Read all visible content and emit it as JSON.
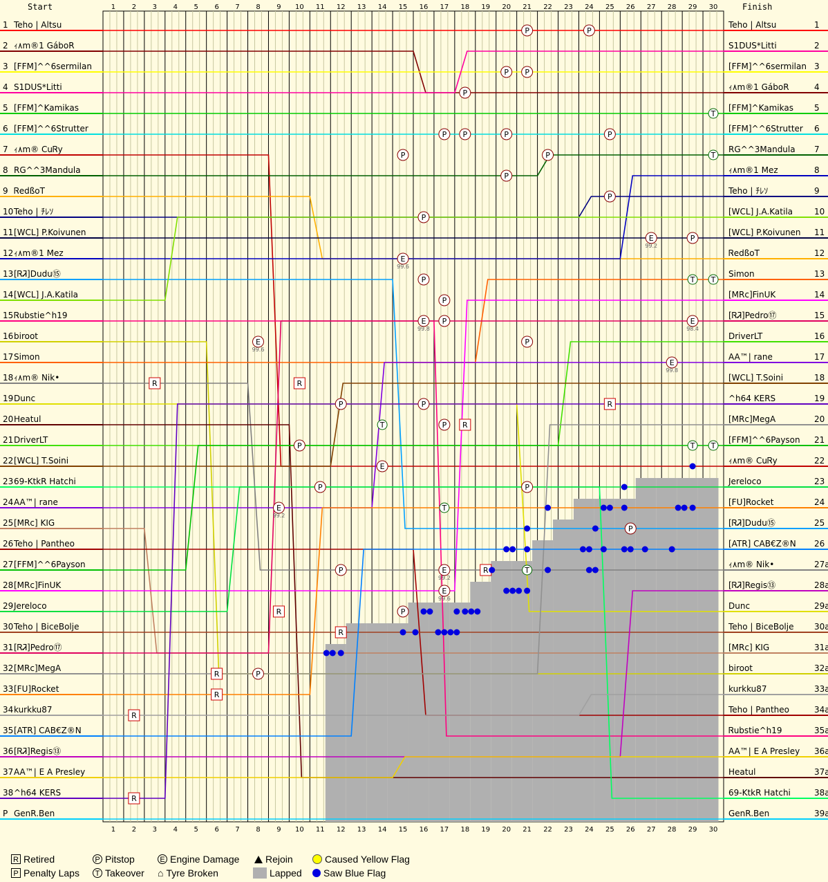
{
  "chart_data": {
    "type": "line",
    "header": {
      "start": "Start",
      "finish": "Finish"
    },
    "laps": [
      1,
      2,
      3,
      4,
      5,
      6,
      7,
      8,
      9,
      10,
      11,
      12,
      13,
      14,
      15,
      16,
      17,
      18,
      19,
      20,
      21,
      22,
      23,
      24,
      25,
      26,
      27,
      28,
      29,
      30
    ],
    "start_positions": [
      "1",
      "2",
      "3",
      "4",
      "5",
      "6",
      "7",
      "8",
      "9",
      "10",
      "11",
      "12",
      "13",
      "14",
      "15",
      "16",
      "17",
      "18",
      "19",
      "20",
      "21",
      "22",
      "23",
      "24",
      "25",
      "26",
      "27",
      "28",
      "29",
      "30",
      "31",
      "32",
      "33",
      "34",
      "35",
      "36",
      "37",
      "38",
      "P"
    ],
    "finish_positions": [
      "1",
      "2",
      "3",
      "4",
      "5",
      "6",
      "7",
      "8",
      "9",
      "10",
      "11",
      "12",
      "13",
      "14",
      "15",
      "16",
      "17",
      "18",
      "19",
      "20",
      "21",
      "22",
      "23",
      "24",
      "25",
      "26",
      "27a",
      "28a",
      "29a",
      "30a",
      "31a",
      "32a",
      "33a",
      "34a",
      "35a",
      "36a",
      "37a",
      "38a",
      "39a"
    ],
    "start_names": [
      "Teho | Altsu",
      "ｨ۸m®1 GáboR",
      "[FFM]^^6sermilan",
      "S1DUS*Litti",
      "[FFM]^Kamikas",
      "[FFM]^^6Strutter",
      "ｨ۸m® CuᏒy",
      "RG^^3Mandula",
      "ᏒedßoT",
      "Teho | ﾁﾚｿ",
      "[WCL] P.Koivunen",
      "ｨ۸m®1 Mez",
      "[ᏒᏘ]Dudu⑮",
      "[WCL] J.A.Katila",
      "Ꮢubstie^h19",
      "biroot",
      "Simon",
      "ｨ۸m® Nik•",
      "Dunc",
      "Heatul",
      "DriverLT",
      "[WCL] T.Soini",
      "69-KtkR Hatchi",
      "AA™| rane",
      "[MRc] KIG",
      "Teho | Pantheo",
      "[FFM]^^6Payson",
      "[MRc]FinUK",
      "Jereloco",
      "Teho | BiceBolje",
      "[ᏒᏘ]Pedro⑰",
      "[MRc]MegA",
      "[FU]Rocket",
      "kurkku87",
      "[ATR] CAB€Z®N",
      "[ᏒᏘ]Regis⑬",
      "AA™| E A Presley",
      "^h64 KERS",
      "GenR.Ben"
    ],
    "finish_names": [
      "Teho | Altsu",
      "S1DUS*Litti",
      "[FFM]^^6sermilan",
      "ｨ۸m®1 GáboR",
      "[FFM]^Kamikas",
      "[FFM]^^6Strutter",
      "RG^^3Mandula",
      "ｨ۸m®1 Mez",
      "Teho | ﾁﾚｿ",
      "[WCL] J.A.Katila",
      "[WCL] P.Koivunen",
      "ᏒedßoT",
      "Simon",
      "[MRc]FinUK",
      "[ᏒᏘ]Pedro⑰",
      "DriverLT",
      "AA™| rane",
      "[WCL] T.Soini",
      "^h64 KERS",
      "[MRc]MegA",
      "[FFM]^^6Payson",
      "ｨ۸m® CuᏒy",
      "Jereloco",
      "[FU]Rocket",
      "[ᏒᏘ]Dudu⑮",
      "[ATR] CAB€Z®N",
      "ｨ۸m® Nik•",
      "[ᏒᏘ]Regis⑬",
      "Dunc",
      "Teho | BiceBolje",
      "[MRc] KIG",
      "biroot",
      "kurkku87",
      "Teho | Pantheo",
      "Ꮢubstie^h19",
      "AA™| E A Presley",
      "Heatul",
      "69-KtkR Hatchi",
      "GenR.Ben"
    ],
    "series": [
      {
        "name": "Teho | Altsu",
        "color": "#ff0000",
        "start": 1,
        "finish": 1
      },
      {
        "name": "ｨ۸m®1 GáboR",
        "color": "#800000",
        "start": 2,
        "finish": 4
      },
      {
        "name": "[FFM]^^6sermilan",
        "color": "#ffff00",
        "start": 3,
        "finish": 3
      },
      {
        "name": "S1DUS*Litti",
        "color": "#ff00a0",
        "start": 4,
        "finish": 2
      },
      {
        "name": "[FFM]^Kamikas",
        "color": "#00cc00",
        "start": 5,
        "finish": 5
      },
      {
        "name": "[FFM]^^6Strutter",
        "color": "#00e0e0",
        "start": 6,
        "finish": 6
      },
      {
        "name": "ｨ۸m® CuᏒy",
        "color": "#c00000",
        "start": 7,
        "finish": 22
      },
      {
        "name": "RG^^3Mandula",
        "color": "#006000",
        "start": 8,
        "finish": 7
      },
      {
        "name": "ᏒedßoT",
        "color": "#ffb000",
        "start": 9,
        "finish": 12
      },
      {
        "name": "Teho | ﾁﾚｿ",
        "color": "#000080",
        "start": 10,
        "finish": 9
      },
      {
        "name": "[WCL] P.Koivunen",
        "color": "#000040",
        "start": 11,
        "finish": 11
      },
      {
        "name": "ｨ۸m®1 Mez",
        "color": "#0000c0",
        "start": 12,
        "finish": 8
      },
      {
        "name": "[ᏒᏘ]Dudu⑮",
        "color": "#00a0ff",
        "start": 13,
        "finish": 25
      },
      {
        "name": "[WCL] J.A.Katila",
        "color": "#80e000",
        "start": 14,
        "finish": 10
      },
      {
        "name": "Ꮢubstie^h19",
        "color": "#ff0080",
        "start": 15,
        "finish": 35
      },
      {
        "name": "biroot",
        "color": "#d0d000",
        "start": 16,
        "finish": 32
      },
      {
        "name": "Simon",
        "color": "#ff6000",
        "start": 17,
        "finish": 13
      },
      {
        "name": "ｨ۸m® Nik•",
        "color": "#808080",
        "start": 18,
        "finish": 27
      },
      {
        "name": "Dunc",
        "color": "#e0e000",
        "start": 19,
        "finish": 29
      },
      {
        "name": "Heatul",
        "color": "#600000",
        "start": 20,
        "finish": 37
      },
      {
        "name": "DriverLT",
        "color": "#40e000",
        "start": 21,
        "finish": 16
      },
      {
        "name": "[WCL] T.Soini",
        "color": "#804000",
        "start": 22,
        "finish": 18
      },
      {
        "name": "69-KtkR Hatchi",
        "color": "#00ff60",
        "start": 23,
        "finish": 38
      },
      {
        "name": "AA™| rane",
        "color": "#8000e0",
        "start": 24,
        "finish": 17
      },
      {
        "name": "[MRc] KIG",
        "color": "#c08060",
        "start": 25,
        "finish": 31
      },
      {
        "name": "Teho | Pantheo",
        "color": "#a00000",
        "start": 26,
        "finish": 34
      },
      {
        "name": "[FFM]^^6Payson",
        "color": "#00c000",
        "start": 27,
        "finish": 21
      },
      {
        "name": "[MRc]FinUK",
        "color": "#ff00ff",
        "start": 28,
        "finish": 14
      },
      {
        "name": "Jereloco",
        "color": "#00e040",
        "start": 29,
        "finish": 23
      },
      {
        "name": "Teho | BiceBolje",
        "color": "#a04020",
        "start": 30,
        "finish": 30
      },
      {
        "name": "[ᏒᏘ]Pedro⑰",
        "color": "#e00060",
        "start": 31,
        "finish": 15
      },
      {
        "name": "[MRc]MegA",
        "color": "#909090",
        "start": 32,
        "finish": 20
      },
      {
        "name": "[FU]Rocket",
        "color": "#ff8000",
        "start": 33,
        "finish": 24
      },
      {
        "name": "kurkku87",
        "color": "#a0a0a0",
        "start": 34,
        "finish": 33
      },
      {
        "name": "[ATR] CAB€Z®N",
        "color": "#0080ff",
        "start": 35,
        "finish": 26
      },
      {
        "name": "[ᏒᏘ]Regis⑬",
        "color": "#c000c0",
        "start": 36,
        "finish": 28
      },
      {
        "name": "AA™| E A Presley",
        "color": "#f0d000",
        "start": 37,
        "finish": 36
      },
      {
        "name": "^h64 KERS",
        "color": "#6000c0",
        "start": 38,
        "finish": 19
      },
      {
        "name": "GenR.Ben",
        "color": "#00d0ff",
        "start": 39,
        "finish": 39
      }
    ],
    "events": [
      {
        "type": "P",
        "lap": 21,
        "pos": 1
      },
      {
        "type": "P",
        "lap": 24,
        "pos": 1
      },
      {
        "type": "P",
        "lap": 20,
        "pos": 3
      },
      {
        "type": "P",
        "lap": 21,
        "pos": 3
      },
      {
        "type": "P",
        "lap": 18,
        "pos": 4
      },
      {
        "type": "T",
        "lap": 30,
        "pos": 5
      },
      {
        "type": "P",
        "lap": 17,
        "pos": 6
      },
      {
        "type": "P",
        "lap": 18,
        "pos": 6
      },
      {
        "type": "P",
        "lap": 20,
        "pos": 6
      },
      {
        "type": "P",
        "lap": 25,
        "pos": 6
      },
      {
        "type": "T",
        "lap": 30,
        "pos": 7
      },
      {
        "type": "P",
        "lap": 15,
        "pos": 7
      },
      {
        "type": "P",
        "lap": 22,
        "pos": 7
      },
      {
        "type": "P",
        "lap": 20,
        "pos": 8
      },
      {
        "type": "P",
        "lap": 25,
        "pos": 9
      },
      {
        "type": "P",
        "lap": 16,
        "pos": 10
      },
      {
        "type": "E",
        "lap": 27,
        "pos": 11
      },
      {
        "type": "P",
        "lap": 29,
        "pos": 11
      },
      {
        "type": "E",
        "lap": 15,
        "pos": 12
      },
      {
        "type": "P",
        "lap": 16,
        "pos": 13
      },
      {
        "type": "T",
        "lap": 29,
        "pos": 13
      },
      {
        "type": "T",
        "lap": 30,
        "pos": 13
      },
      {
        "type": "P",
        "lap": 17,
        "pos": 14
      },
      {
        "type": "E",
        "lap": 16,
        "pos": 15
      },
      {
        "type": "P",
        "lap": 17,
        "pos": 15
      },
      {
        "type": "E",
        "lap": 29,
        "pos": 15
      },
      {
        "type": "E",
        "lap": 8,
        "pos": 16
      },
      {
        "type": "P",
        "lap": 21,
        "pos": 16
      },
      {
        "type": "E",
        "lap": 28,
        "pos": 17
      },
      {
        "type": "R",
        "lap": 3,
        "pos": 18
      },
      {
        "type": "R",
        "lap": 10,
        "pos": 18
      },
      {
        "type": "P",
        "lap": 12,
        "pos": 19
      },
      {
        "type": "P",
        "lap": 16,
        "pos": 19
      },
      {
        "type": "R",
        "lap": 25,
        "pos": 19
      },
      {
        "type": "T",
        "lap": 14,
        "pos": 20
      },
      {
        "type": "P",
        "lap": 17,
        "pos": 20
      },
      {
        "type": "R",
        "lap": 18,
        "pos": 20
      },
      {
        "type": "P",
        "lap": 10,
        "pos": 21
      },
      {
        "type": "T",
        "lap": 29,
        "pos": 21
      },
      {
        "type": "T",
        "lap": 30,
        "pos": 21
      },
      {
        "type": "E",
        "lap": 14,
        "pos": 22
      },
      {
        "type": "P",
        "lap": 11,
        "pos": 23
      },
      {
        "type": "P",
        "lap": 21,
        "pos": 23
      },
      {
        "type": "E",
        "lap": 9,
        "pos": 24
      },
      {
        "type": "T",
        "lap": 17,
        "pos": 24
      },
      {
        "type": "P",
        "lap": 26,
        "pos": 25
      },
      {
        "type": "P",
        "lap": 12,
        "pos": 27
      },
      {
        "type": "E",
        "lap": 17,
        "pos": 27
      },
      {
        "type": "R",
        "lap": 19,
        "pos": 27
      },
      {
        "type": "T",
        "lap": 21,
        "pos": 27
      },
      {
        "type": "E",
        "lap": 17,
        "pos": 28
      },
      {
        "type": "R",
        "lap": 9,
        "pos": 29
      },
      {
        "type": "P",
        "lap": 15,
        "pos": 29
      },
      {
        "type": "R",
        "lap": 12,
        "pos": 30
      },
      {
        "type": "R",
        "lap": 6,
        "pos": 32
      },
      {
        "type": "P",
        "lap": 8,
        "pos": 32
      },
      {
        "type": "R",
        "lap": 6,
        "pos": 33
      },
      {
        "type": "R",
        "lap": 2,
        "pos": 34
      },
      {
        "type": "P",
        "lap": 2,
        "pos": 38
      },
      {
        "type": "R",
        "lap": 2,
        "pos": 38
      }
    ],
    "lapped": [
      {
        "lap": 11,
        "from_pos": 31
      },
      {
        "lap": 12,
        "from_pos": 30
      },
      {
        "lap": 13,
        "from_pos": 30
      },
      {
        "lap": 14,
        "from_pos": 30
      },
      {
        "lap": 15,
        "from_pos": 29
      },
      {
        "lap": 16,
        "from_pos": 29
      },
      {
        "lap": 17,
        "from_pos": 29
      },
      {
        "lap": 18,
        "from_pos": 28
      },
      {
        "lap": 19,
        "from_pos": 27
      },
      {
        "lap": 20,
        "from_pos": 27
      },
      {
        "lap": 21,
        "from_pos": 26
      },
      {
        "lap": 22,
        "from_pos": 25
      },
      {
        "lap": 23,
        "from_pos": 24
      },
      {
        "lap": 24,
        "from_pos": 24
      },
      {
        "lap": 25,
        "from_pos": 24
      },
      {
        "lap": 26,
        "from_pos": 23
      },
      {
        "lap": 27,
        "from_pos": 23
      },
      {
        "lap": 28,
        "from_pos": 23
      },
      {
        "lap": 29,
        "from_pos": 23
      }
    ],
    "blue_flags": [
      {
        "lap": 11.3,
        "pos": 31
      },
      {
        "lap": 11.6,
        "pos": 31
      },
      {
        "lap": 12,
        "pos": 31
      },
      {
        "lap": 15,
        "pos": 30
      },
      {
        "lap": 15.6,
        "pos": 30
      },
      {
        "lap": 16.7,
        "pos": 30
      },
      {
        "lap": 17,
        "pos": 30
      },
      {
        "lap": 17.3,
        "pos": 30
      },
      {
        "lap": 17.6,
        "pos": 30
      },
      {
        "lap": 16,
        "pos": 29
      },
      {
        "lap": 16.3,
        "pos": 29
      },
      {
        "lap": 17.6,
        "pos": 29
      },
      {
        "lap": 18,
        "pos": 29
      },
      {
        "lap": 18.3,
        "pos": 29
      },
      {
        "lap": 18.6,
        "pos": 29
      },
      {
        "lap": 20,
        "pos": 28
      },
      {
        "lap": 20.3,
        "pos": 28
      },
      {
        "lap": 20.6,
        "pos": 28
      },
      {
        "lap": 21,
        "pos": 28
      },
      {
        "lap": 19.3,
        "pos": 27
      },
      {
        "lap": 22,
        "pos": 27
      },
      {
        "lap": 24,
        "pos": 27
      },
      {
        "lap": 24.3,
        "pos": 27
      },
      {
        "lap": 20,
        "pos": 26
      },
      {
        "lap": 20.3,
        "pos": 26
      },
      {
        "lap": 21,
        "pos": 26
      },
      {
        "lap": 23.7,
        "pos": 26
      },
      {
        "lap": 24,
        "pos": 26
      },
      {
        "lap": 24.7,
        "pos": 26
      },
      {
        "lap": 25.7,
        "pos": 26
      },
      {
        "lap": 26,
        "pos": 26
      },
      {
        "lap": 26.7,
        "pos": 26
      },
      {
        "lap": 28,
        "pos": 26
      },
      {
        "lap": 21,
        "pos": 25
      },
      {
        "lap": 24.3,
        "pos": 25
      },
      {
        "lap": 22,
        "pos": 24
      },
      {
        "lap": 24.7,
        "pos": 24
      },
      {
        "lap": 25,
        "pos": 24
      },
      {
        "lap": 25.7,
        "pos": 24
      },
      {
        "lap": 28.3,
        "pos": 24
      },
      {
        "lap": 28.6,
        "pos": 24
      },
      {
        "lap": 29,
        "pos": 24
      },
      {
        "lap": 25.7,
        "pos": 23
      },
      {
        "lap": 29,
        "pos": 22
      }
    ],
    "event_values": [
      {
        "lap": 15,
        "pos": 12,
        "text": "99.6"
      },
      {
        "lap": 16,
        "pos": 15,
        "text": "99.8"
      },
      {
        "lap": 8,
        "pos": 16,
        "text": "99.6"
      },
      {
        "lap": 9,
        "pos": 24,
        "text": "99.2"
      },
      {
        "lap": 17,
        "pos": 27,
        "text": "99.2"
      },
      {
        "lap": 17,
        "pos": 28,
        "text": "99.6"
      },
      {
        "lap": 27,
        "pos": 11,
        "text": "99.2"
      },
      {
        "lap": 29,
        "pos": 15,
        "text": "98.4"
      },
      {
        "lap": 28,
        "pos": 17,
        "text": "99.8"
      }
    ]
  },
  "legend": {
    "retired": "Retired",
    "penalty": "Penalty Laps",
    "pitstop": "Pitstop",
    "takeover": "Takeover",
    "engine": "Engine Damage",
    "tyre": "Tyre Broken",
    "rejoin": "Rejoin",
    "lapped": "Lapped",
    "yellow": "Caused Yellow Flag",
    "blue": "Saw Blue Flag",
    "sym_r": "R",
    "sym_p": "P",
    "sym_t": "T",
    "sym_e": "E",
    "sym_house": "⌂"
  }
}
